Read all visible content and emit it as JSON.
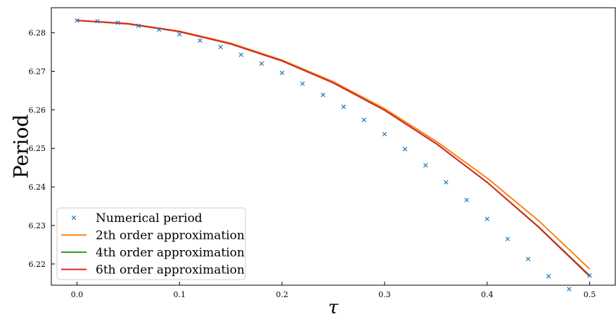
{
  "chart_data": {
    "type": "line",
    "title": "",
    "xlabel": "τ",
    "ylabel": "Period",
    "xlim": [
      -0.025,
      0.525
    ],
    "ylim": [
      6.2145,
      6.2865
    ],
    "xticks": [
      0.0,
      0.1,
      0.2,
      0.3,
      0.4,
      0.5
    ],
    "xtick_labels": [
      "0.0",
      "0.1",
      "0.2",
      "0.3",
      "0.4",
      "0.5"
    ],
    "yticks": [
      6.22,
      6.23,
      6.24,
      6.25,
      6.26,
      6.27,
      6.28
    ],
    "ytick_labels": [
      "6.22",
      "6.23",
      "6.24",
      "6.25",
      "6.26",
      "6.27",
      "6.28"
    ],
    "grid": false,
    "legend_position": "lower-left",
    "x": [
      0.0,
      0.05,
      0.1,
      0.15,
      0.2,
      0.25,
      0.3,
      0.35,
      0.4,
      0.45,
      0.5
    ],
    "series": [
      {
        "name": "Numerical period",
        "style": "marker-x",
        "color": "#1f77b4",
        "x": [
          0.0,
          0.02,
          0.04,
          0.06,
          0.08,
          0.1,
          0.12,
          0.14,
          0.16,
          0.18,
          0.2,
          0.22,
          0.24,
          0.26,
          0.28,
          0.3,
          0.32,
          0.34,
          0.36,
          0.38,
          0.4,
          0.42,
          0.44,
          0.46,
          0.48,
          0.5
        ],
        "values": [
          6.2832,
          6.283,
          6.2826,
          6.2818,
          6.2808,
          6.2796,
          6.278,
          6.2763,
          6.2743,
          6.272,
          6.2696,
          6.2668,
          6.2639,
          6.2608,
          6.2574,
          6.2537,
          6.2498,
          6.2456,
          6.2412,
          6.2366,
          6.2317,
          6.2265,
          6.2213,
          6.2168,
          6.2135,
          6.217
        ]
      },
      {
        "name": "2th order approximation",
        "style": "line",
        "color": "#ff7f0e",
        "values": [
          6.2832,
          6.2824,
          6.2804,
          6.2773,
          6.2729,
          6.2673,
          6.2603,
          6.2519,
          6.2423,
          6.2313,
          6.2187
        ]
      },
      {
        "name": "4th order approximation",
        "style": "line",
        "color": "#2ca02c",
        "values": [
          6.2832,
          6.2823,
          6.2803,
          6.2771,
          6.2727,
          6.267,
          6.2599,
          6.2513,
          6.2412,
          6.2297,
          6.217
        ]
      },
      {
        "name": "6th order approximation",
        "style": "line",
        "color": "#d62728",
        "values": [
          6.2832,
          6.2823,
          6.2803,
          6.2771,
          6.2727,
          6.267,
          6.2599,
          6.2513,
          6.2412,
          6.2296,
          6.2168
        ]
      }
    ]
  }
}
